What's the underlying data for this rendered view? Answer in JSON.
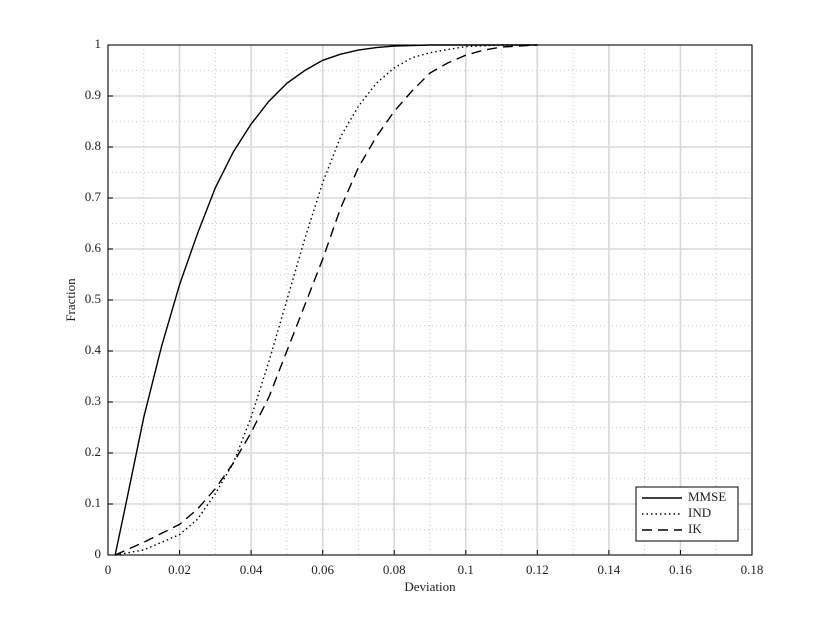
{
  "chart_data": {
    "type": "line",
    "xlabel": "Deviation",
    "ylabel": "Fraction",
    "xlim": [
      0,
      0.18
    ],
    "xticks": [
      0,
      0.02,
      0.04,
      0.06,
      0.08,
      0.1,
      0.12,
      0.14,
      0.16,
      0.18
    ],
    "ylim": [
      0,
      1
    ],
    "yticks": [
      0,
      0.1,
      0.2,
      0.3,
      0.4,
      0.5,
      0.6,
      0.7,
      0.8,
      0.9,
      1
    ],
    "grid": true,
    "minor_grid": true,
    "legend": "lower right",
    "series": [
      {
        "name": "MMSE",
        "color": "#000000",
        "dash": "solid",
        "x": [
          0.002,
          0.005,
          0.01,
          0.015,
          0.02,
          0.025,
          0.03,
          0.035,
          0.04,
          0.045,
          0.05,
          0.055,
          0.06,
          0.065,
          0.07,
          0.075,
          0.08,
          0.09,
          0.1,
          0.12
        ],
        "values": [
          0,
          0.1,
          0.27,
          0.41,
          0.53,
          0.63,
          0.72,
          0.79,
          0.845,
          0.89,
          0.925,
          0.95,
          0.97,
          0.982,
          0.99,
          0.995,
          0.998,
          1,
          1,
          1
        ]
      },
      {
        "name": "IND",
        "color": "#000000",
        "dash": "dotted",
        "x": [
          0.002,
          0.01,
          0.02,
          0.025,
          0.03,
          0.035,
          0.04,
          0.045,
          0.05,
          0.055,
          0.06,
          0.065,
          0.07,
          0.075,
          0.08,
          0.085,
          0.09,
          0.1,
          0.11,
          0.12
        ],
        "values": [
          0,
          0.01,
          0.04,
          0.07,
          0.12,
          0.18,
          0.27,
          0.38,
          0.5,
          0.62,
          0.73,
          0.82,
          0.88,
          0.925,
          0.955,
          0.975,
          0.985,
          0.997,
          1,
          1
        ]
      },
      {
        "name": "IK",
        "color": "#000000",
        "dash": "dashed",
        "x": [
          0.002,
          0.01,
          0.02,
          0.025,
          0.03,
          0.035,
          0.04,
          0.045,
          0.05,
          0.055,
          0.06,
          0.065,
          0.07,
          0.075,
          0.08,
          0.085,
          0.09,
          0.095,
          0.1,
          0.105,
          0.11,
          0.12
        ],
        "values": [
          0,
          0.025,
          0.06,
          0.09,
          0.13,
          0.18,
          0.24,
          0.31,
          0.4,
          0.49,
          0.58,
          0.68,
          0.76,
          0.82,
          0.87,
          0.91,
          0.945,
          0.965,
          0.98,
          0.99,
          0.996,
          1
        ]
      }
    ]
  }
}
